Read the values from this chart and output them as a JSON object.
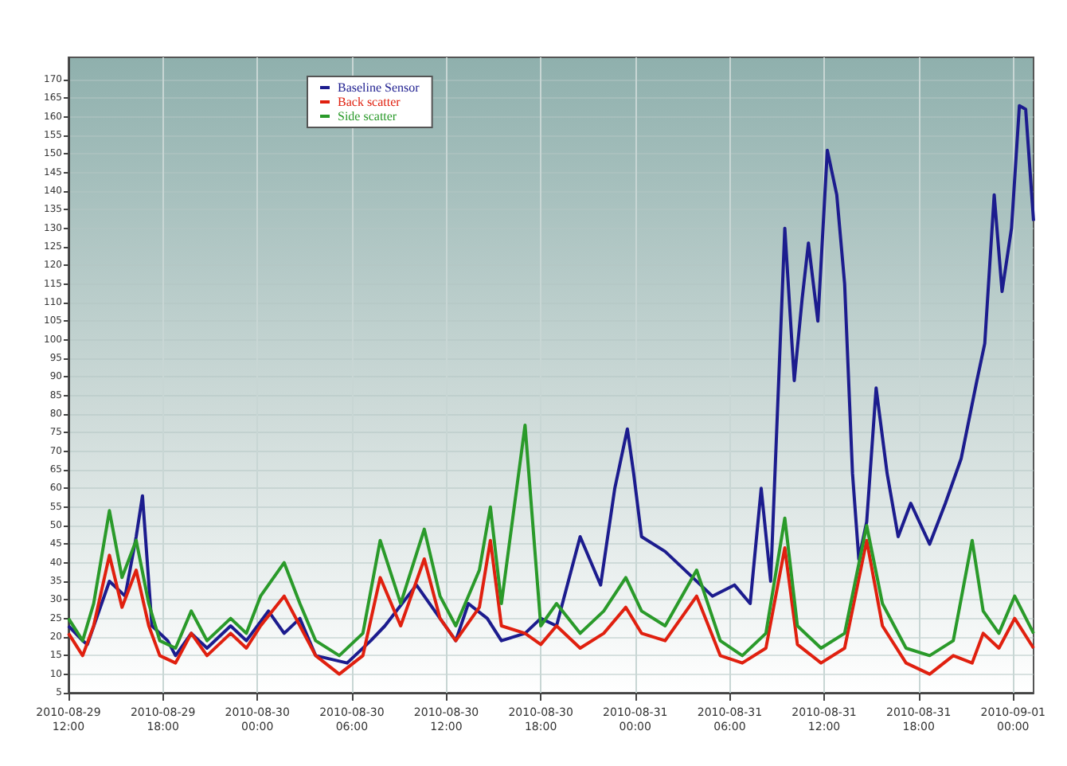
{
  "chart_data": {
    "type": "line",
    "xlim": [
      "2010-08-29T12:00",
      "2010-09-01T01:18"
    ],
    "xticks": [
      {
        "value": "2010-08-29T12:00",
        "label": "2010-08-29\n12:00"
      },
      {
        "value": "2010-08-29T18:00",
        "label": "2010-08-29\n18:00"
      },
      {
        "value": "2010-08-30T00:00",
        "label": "2010-08-30\n00:00"
      },
      {
        "value": "2010-08-30T06:00",
        "label": "2010-08-30\n06:00"
      },
      {
        "value": "2010-08-30T12:00",
        "label": "2010-08-30\n12:00"
      },
      {
        "value": "2010-08-30T18:00",
        "label": "2010-08-30\n18:00"
      },
      {
        "value": "2010-08-31T00:00",
        "label": "2010-08-31\n00:00"
      },
      {
        "value": "2010-08-31T06:00",
        "label": "2010-08-31\n06:00"
      },
      {
        "value": "2010-08-31T12:00",
        "label": "2010-08-31\n12:00"
      },
      {
        "value": "2010-08-31T18:00",
        "label": "2010-08-31\n18:00"
      },
      {
        "value": "2010-09-01T00:00",
        "label": "2010-09-01\n00:00"
      }
    ],
    "ylim": [
      5,
      176
    ],
    "yticks": [
      5,
      10,
      15,
      20,
      25,
      30,
      35,
      40,
      45,
      50,
      55,
      60,
      65,
      70,
      75,
      80,
      85,
      90,
      95,
      100,
      105,
      110,
      115,
      120,
      125,
      130,
      135,
      140,
      145,
      150,
      155,
      160,
      165,
      170
    ],
    "grid": true,
    "legend": "top left",
    "line_style": "solid",
    "marker": "none",
    "series": [
      {
        "name": "Baseline Sensor",
        "color": "#1c1c8e",
        "x": [
          "2010-08-29T12:00",
          "2010-08-29T12:54",
          "2010-08-29T13:12",
          "2010-08-29T14:36",
          "2010-08-29T15:36",
          "2010-08-29T16:18",
          "2010-08-29T16:42",
          "2010-08-29T17:18",
          "2010-08-29T18:18",
          "2010-08-29T18:48",
          "2010-08-29T19:48",
          "2010-08-29T20:48",
          "2010-08-29T22:18",
          "2010-08-29T23:18",
          "2010-08-30T00:42",
          "2010-08-30T01:42",
          "2010-08-30T02:42",
          "2010-08-30T03:42",
          "2010-08-30T05:42",
          "2010-08-30T07:12",
          "2010-08-30T08:06",
          "2010-08-30T10:06",
          "2010-08-30T11:36",
          "2010-08-30T12:36",
          "2010-08-30T13:24",
          "2010-08-30T14:36",
          "2010-08-30T15:30",
          "2010-08-30T17:00",
          "2010-08-30T18:00",
          "2010-08-30T19:00",
          "2010-08-30T20:30",
          "2010-08-30T21:48",
          "2010-08-30T22:42",
          "2010-08-30T23:30",
          "2010-08-30T23:54",
          "2010-08-31T00:24",
          "2010-08-31T01:54",
          "2010-08-31T03:24",
          "2010-08-31T04:54",
          "2010-08-31T06:18",
          "2010-08-31T07:18",
          "2010-08-31T08:00",
          "2010-08-31T08:36",
          "2010-08-31T09:30",
          "2010-08-31T10:06",
          "2010-08-31T10:36",
          "2010-08-31T11:00",
          "2010-08-31T11:36",
          "2010-08-31T12:12",
          "2010-08-31T12:48",
          "2010-08-31T13:18",
          "2010-08-31T13:48",
          "2010-08-31T14:12",
          "2010-08-31T14:42",
          "2010-08-31T15:18",
          "2010-08-31T16:00",
          "2010-08-31T16:42",
          "2010-08-31T17:30",
          "2010-08-31T18:42",
          "2010-08-31T19:42",
          "2010-08-31T20:42",
          "2010-08-31T21:42",
          "2010-08-31T22:12",
          "2010-08-31T22:48",
          "2010-08-31T23:18",
          "2010-08-31T23:54",
          "2010-09-01T00:24",
          "2010-09-01T00:48",
          "2010-09-01T01:18"
        ],
        "values": [
          23,
          19,
          18,
          35,
          31,
          47,
          58,
          23,
          19,
          15,
          21,
          17,
          23,
          19,
          27,
          21,
          25,
          15,
          13,
          19,
          23,
          34,
          25,
          19,
          29,
          25,
          19,
          21,
          25,
          23,
          47,
          34,
          60,
          76,
          64,
          47,
          43,
          37,
          31,
          34,
          29,
          60,
          35,
          130,
          89,
          111,
          126,
          105,
          151,
          139,
          115,
          64,
          41,
          51,
          87,
          64,
          47,
          56,
          45,
          56,
          68,
          89,
          99,
          139,
          113,
          130,
          163,
          162,
          132
        ]
      },
      {
        "name": "Back scatter",
        "color": "#e0200f",
        "x": [
          "2010-08-29T12:00",
          "2010-08-29T12:54",
          "2010-08-29T13:36",
          "2010-08-29T14:36",
          "2010-08-29T15:24",
          "2010-08-29T16:18",
          "2010-08-29T17:06",
          "2010-08-29T17:48",
          "2010-08-29T18:48",
          "2010-08-29T19:48",
          "2010-08-29T20:48",
          "2010-08-29T22:18",
          "2010-08-29T23:18",
          "2010-08-30T00:12",
          "2010-08-30T01:42",
          "2010-08-30T02:42",
          "2010-08-30T03:42",
          "2010-08-30T05:12",
          "2010-08-30T06:42",
          "2010-08-30T07:48",
          "2010-08-30T09:06",
          "2010-08-30T10:36",
          "2010-08-30T11:36",
          "2010-08-30T12:36",
          "2010-08-30T14:06",
          "2010-08-30T14:48",
          "2010-08-30T15:30",
          "2010-08-30T17:00",
          "2010-08-30T18:00",
          "2010-08-30T19:00",
          "2010-08-30T20:30",
          "2010-08-30T22:00",
          "2010-08-30T23:24",
          "2010-08-31T00:24",
          "2010-08-31T01:54",
          "2010-08-31T03:54",
          "2010-08-31T05:24",
          "2010-08-31T06:48",
          "2010-08-31T08:18",
          "2010-08-31T09:30",
          "2010-08-31T10:18",
          "2010-08-31T11:48",
          "2010-08-31T13:18",
          "2010-08-31T14:42",
          "2010-08-31T15:42",
          "2010-08-31T17:12",
          "2010-08-31T18:42",
          "2010-08-31T20:12",
          "2010-08-31T21:24",
          "2010-08-31T22:06",
          "2010-08-31T23:06",
          "2010-09-01T00:06",
          "2010-09-01T01:18"
        ],
        "values": [
          21,
          15,
          23,
          42,
          28,
          38,
          23,
          15,
          13,
          21,
          15,
          21,
          17,
          23,
          31,
          23,
          15,
          10,
          15,
          36,
          23,
          41,
          25,
          19,
          28,
          46,
          23,
          21,
          18,
          23,
          17,
          21,
          28,
          21,
          19,
          31,
          15,
          13,
          17,
          44,
          18,
          13,
          17,
          46,
          23,
          13,
          10,
          15,
          13,
          21,
          17,
          25,
          17
        ]
      },
      {
        "name": "Side scatter",
        "color": "#2a9a2a",
        "x": [
          "2010-08-29T12:00",
          "2010-08-29T12:54",
          "2010-08-29T13:36",
          "2010-08-29T14:36",
          "2010-08-29T15:24",
          "2010-08-29T16:18",
          "2010-08-29T17:06",
          "2010-08-29T17:48",
          "2010-08-29T18:48",
          "2010-08-29T19:48",
          "2010-08-29T20:48",
          "2010-08-29T22:18",
          "2010-08-29T23:18",
          "2010-08-30T00:12",
          "2010-08-30T01:42",
          "2010-08-30T02:42",
          "2010-08-30T03:42",
          "2010-08-30T05:12",
          "2010-08-30T06:42",
          "2010-08-30T07:48",
          "2010-08-30T09:06",
          "2010-08-30T10:36",
          "2010-08-30T11:36",
          "2010-08-30T12:36",
          "2010-08-30T14:06",
          "2010-08-30T14:48",
          "2010-08-30T15:30",
          "2010-08-30T17:00",
          "2010-08-30T18:00",
          "2010-08-30T19:00",
          "2010-08-30T20:30",
          "2010-08-30T22:00",
          "2010-08-30T23:24",
          "2010-08-31T00:24",
          "2010-08-31T01:54",
          "2010-08-31T03:54",
          "2010-08-31T05:24",
          "2010-08-31T06:48",
          "2010-08-31T08:18",
          "2010-08-31T09:30",
          "2010-08-31T10:18",
          "2010-08-31T11:48",
          "2010-08-31T13:18",
          "2010-08-31T14:42",
          "2010-08-31T15:42",
          "2010-08-31T17:12",
          "2010-08-31T18:42",
          "2010-08-31T20:12",
          "2010-08-31T21:24",
          "2010-08-31T22:06",
          "2010-08-31T23:06",
          "2010-09-01T00:06",
          "2010-09-01T01:18"
        ],
        "values": [
          25,
          19,
          29,
          54,
          36,
          46,
          29,
          19,
          17,
          27,
          19,
          25,
          21,
          31,
          40,
          29,
          19,
          15,
          21,
          46,
          29,
          49,
          31,
          23,
          38,
          55,
          29,
          77,
          23,
          29,
          21,
          27,
          36,
          27,
          23,
          38,
          19,
          15,
          21,
          52,
          23,
          17,
          21,
          50,
          29,
          17,
          15,
          19,
          46,
          27,
          21,
          31,
          21
        ]
      }
    ]
  }
}
